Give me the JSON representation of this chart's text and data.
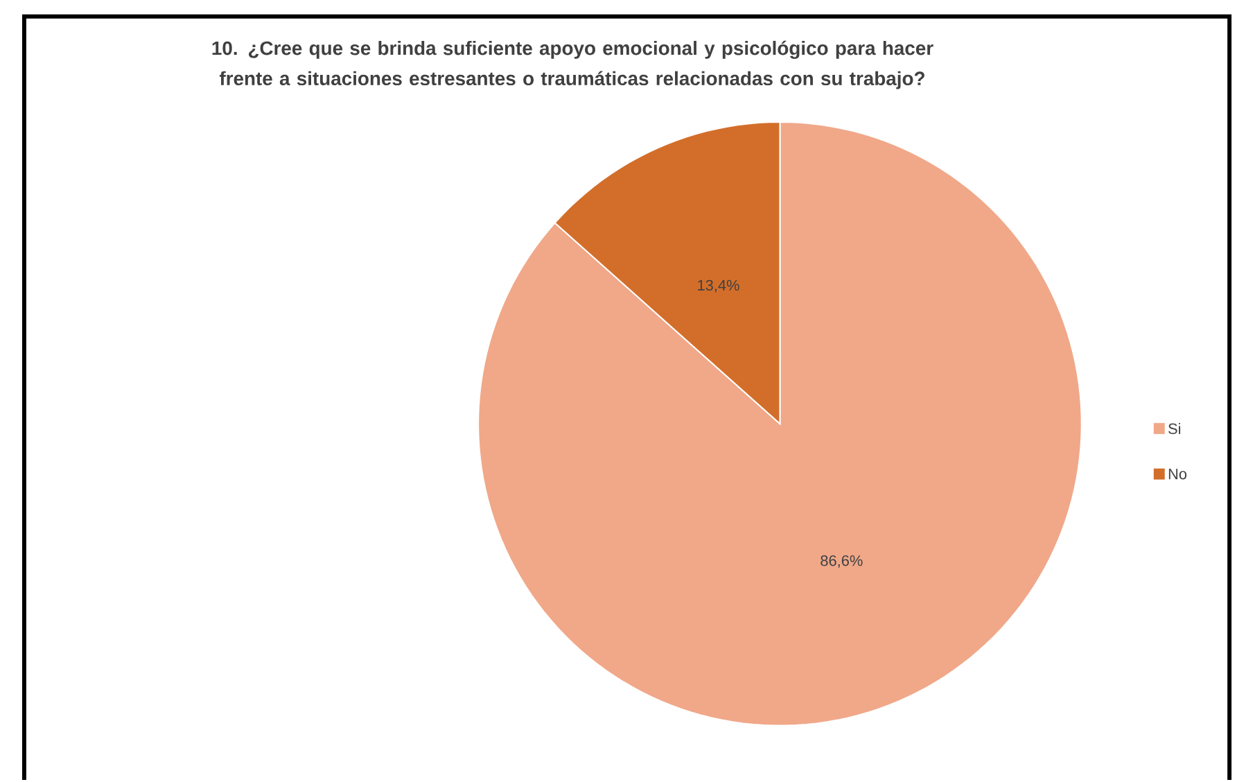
{
  "chart_data": {
    "type": "pie",
    "title": "10. ¿Cree que se brinda suficiente apoyo emocional y psicológico para hacer frente a situaciones estresantes o traumáticas relacionadas con su trabajo?",
    "categories": [
      "Si",
      "No"
    ],
    "values": [
      86.6,
      13.4
    ],
    "value_labels": [
      "86,6%",
      "13,4%"
    ],
    "colors": [
      "#f0a889",
      "#d36e2a"
    ],
    "legend": "right"
  }
}
